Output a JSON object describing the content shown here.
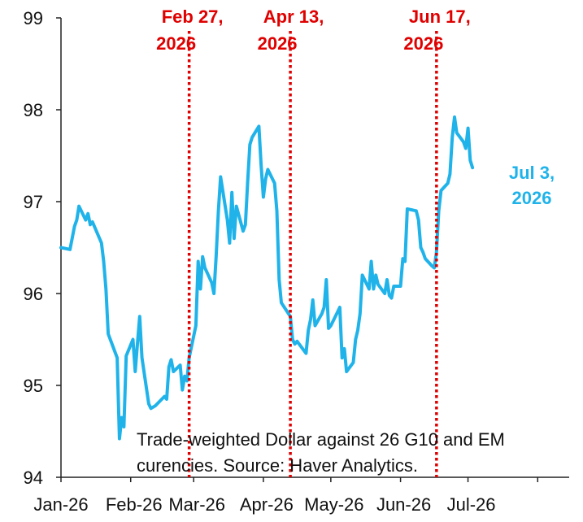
{
  "chart_data": {
    "type": "line",
    "title": "",
    "xlabel": "",
    "ylabel": "",
    "ylim": [
      94,
      99
    ],
    "y_ticks": [
      "94",
      "95",
      "96",
      "97",
      "98",
      "99"
    ],
    "x_ticks": [
      "Jan-26",
      "Feb-26",
      "Mar-26",
      "Apr-26",
      "May-26",
      "Jun-26",
      "Jul-26"
    ],
    "x_range": [
      "2026-01-01",
      "2026-08-15"
    ],
    "grid": false,
    "line_color": "#1fb3ea",
    "marker_color": "#e00000",
    "series": [
      {
        "values": [
          [
            "2026-01-01",
            96.5
          ],
          [
            "2026-01-05",
            96.48
          ],
          [
            "2026-01-07",
            96.73
          ],
          [
            "2026-01-08",
            96.8
          ],
          [
            "2026-01-09",
            96.95
          ],
          [
            "2026-01-12",
            96.8
          ],
          [
            "2026-01-13",
            96.87
          ],
          [
            "2026-01-14",
            96.75
          ],
          [
            "2026-01-15",
            96.78
          ],
          [
            "2026-01-19",
            96.55
          ],
          [
            "2026-01-20",
            96.35
          ],
          [
            "2026-01-21",
            96.05
          ],
          [
            "2026-01-22",
            95.56
          ],
          [
            "2026-01-26",
            95.3
          ],
          [
            "2026-01-27",
            94.42
          ],
          [
            "2026-01-28",
            94.65
          ],
          [
            "2026-01-29",
            94.55
          ],
          [
            "2026-01-30",
            95.32
          ],
          [
            "2026-02-02",
            95.5
          ],
          [
            "2026-02-03",
            95.15
          ],
          [
            "2026-02-04",
            95.45
          ],
          [
            "2026-02-05",
            95.75
          ],
          [
            "2026-02-06",
            95.3
          ],
          [
            "2026-02-09",
            94.8
          ],
          [
            "2026-02-10",
            94.75
          ],
          [
            "2026-02-12",
            94.78
          ],
          [
            "2026-02-16",
            94.88
          ],
          [
            "2026-02-17",
            94.85
          ],
          [
            "2026-02-18",
            95.2
          ],
          [
            "2026-02-19",
            95.28
          ],
          [
            "2026-02-20",
            95.15
          ],
          [
            "2026-02-23",
            95.22
          ],
          [
            "2026-02-24",
            94.95
          ],
          [
            "2026-02-25",
            95.1
          ],
          [
            "2026-02-26",
            95.05
          ],
          [
            "2026-02-27",
            95.3
          ],
          [
            "2026-03-02",
            95.65
          ],
          [
            "2026-03-03",
            96.35
          ],
          [
            "2026-03-04",
            96.05
          ],
          [
            "2026-03-05",
            96.4
          ],
          [
            "2026-03-06",
            96.28
          ],
          [
            "2026-03-09",
            96.12
          ],
          [
            "2026-03-10",
            96.0
          ],
          [
            "2026-03-11",
            96.4
          ],
          [
            "2026-03-12",
            96.9
          ],
          [
            "2026-03-13",
            97.27
          ],
          [
            "2026-03-16",
            96.8
          ],
          [
            "2026-03-17",
            96.55
          ],
          [
            "2026-03-18",
            97.1
          ],
          [
            "2026-03-19",
            96.6
          ],
          [
            "2026-03-20",
            96.95
          ],
          [
            "2026-03-23",
            96.68
          ],
          [
            "2026-03-24",
            96.75
          ],
          [
            "2026-03-25",
            97.2
          ],
          [
            "2026-03-26",
            97.62
          ],
          [
            "2026-03-27",
            97.7
          ],
          [
            "2026-03-30",
            97.82
          ],
          [
            "2026-03-31",
            97.4
          ],
          [
            "2026-04-01",
            97.05
          ],
          [
            "2026-04-02",
            97.25
          ],
          [
            "2026-04-03",
            97.35
          ],
          [
            "2026-04-06",
            97.2
          ],
          [
            "2026-04-07",
            96.9
          ],
          [
            "2026-04-08",
            96.15
          ],
          [
            "2026-04-09",
            95.9
          ],
          [
            "2026-04-13",
            95.75
          ],
          [
            "2026-04-14",
            95.5
          ],
          [
            "2026-04-15",
            95.45
          ],
          [
            "2026-04-16",
            95.48
          ],
          [
            "2026-04-20",
            95.35
          ],
          [
            "2026-04-21",
            95.6
          ],
          [
            "2026-04-22",
            95.72
          ],
          [
            "2026-04-23",
            95.93
          ],
          [
            "2026-04-24",
            95.65
          ],
          [
            "2026-04-27",
            95.78
          ],
          [
            "2026-04-28",
            95.85
          ],
          [
            "2026-04-29",
            96.15
          ],
          [
            "2026-04-30",
            95.62
          ],
          [
            "2026-05-01",
            95.65
          ],
          [
            "2026-05-04",
            95.8
          ],
          [
            "2026-05-05",
            95.85
          ],
          [
            "2026-05-06",
            95.3
          ],
          [
            "2026-05-07",
            95.4
          ],
          [
            "2026-05-08",
            95.15
          ],
          [
            "2026-05-11",
            95.25
          ],
          [
            "2026-05-12",
            95.5
          ],
          [
            "2026-05-13",
            95.6
          ],
          [
            "2026-05-14",
            95.78
          ],
          [
            "2026-05-15",
            96.2
          ],
          [
            "2026-05-18",
            96.05
          ],
          [
            "2026-05-19",
            96.35
          ],
          [
            "2026-05-20",
            96.05
          ],
          [
            "2026-05-21",
            96.2
          ],
          [
            "2026-05-22",
            96.1
          ],
          [
            "2026-05-25",
            96.0
          ],
          [
            "2026-05-26",
            96.15
          ],
          [
            "2026-05-27",
            95.98
          ],
          [
            "2026-05-28",
            95.95
          ],
          [
            "2026-05-29",
            96.08
          ],
          [
            "2026-06-01",
            96.08
          ],
          [
            "2026-06-02",
            96.38
          ],
          [
            "2026-06-03",
            96.35
          ],
          [
            "2026-06-04",
            96.92
          ],
          [
            "2026-06-08",
            96.9
          ],
          [
            "2026-06-09",
            96.8
          ],
          [
            "2026-06-10",
            96.5
          ],
          [
            "2026-06-11",
            96.45
          ],
          [
            "2026-06-12",
            96.38
          ],
          [
            "2026-06-15",
            96.3
          ],
          [
            "2026-06-16",
            96.28
          ],
          [
            "2026-06-17",
            96.45
          ],
          [
            "2026-06-18",
            96.9
          ],
          [
            "2026-06-19",
            97.12
          ],
          [
            "2026-06-22",
            97.2
          ],
          [
            "2026-06-23",
            97.3
          ],
          [
            "2026-06-24",
            97.7
          ],
          [
            "2026-06-25",
            97.92
          ],
          [
            "2026-06-26",
            97.75
          ],
          [
            "2026-06-29",
            97.65
          ],
          [
            "2026-06-30",
            97.58
          ],
          [
            "2026-07-01",
            97.8
          ],
          [
            "2026-07-02",
            97.45
          ],
          [
            "2026-07-03",
            97.37
          ]
        ]
      }
    ],
    "event_markers": [
      {
        "date": "2026-02-27",
        "label_line1": "Feb 27,",
        "label_line2": "2026"
      },
      {
        "date": "2026-04-13",
        "label_line1": "Apr 13,",
        "label_line2": "2026"
      },
      {
        "date": "2026-06-17",
        "label_line1": "Jun 17,",
        "label_line2": "2026"
      }
    ],
    "end_label": {
      "line1": "Jul 3,",
      "line2": "2026"
    },
    "note": {
      "line1": "Trade-weighted Dollar against 26 G10 and EM",
      "line2": "curencies. Source: Haver Analytics."
    }
  }
}
